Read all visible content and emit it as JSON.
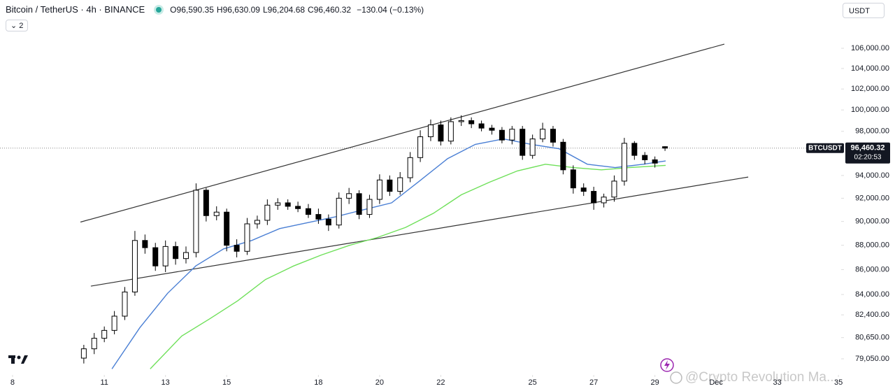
{
  "chart_data": {
    "type": "candlestick",
    "title": "Bitcoin / TetherUS · 4h · BINANCE",
    "ohlc_legend": [
      {
        "label": "O",
        "value": "96,590.35"
      },
      {
        "label": "H",
        "value": "96,630.09"
      },
      {
        "label": "L",
        "value": "96,204.68"
      },
      {
        "label": "C",
        "value": "96,460.32"
      }
    ],
    "change": "−130.04 (−0.13%)",
    "indicator_count": "2",
    "currency": "USDT",
    "symbol": "BTCUSDT",
    "countdown": "02:20:53",
    "watermark": "@Crypto Revolution Ma...",
    "log_scale": true,
    "up_color": "#ffffff",
    "down_color": "#000000",
    "wick_color": "#000000",
    "xlim": [
      7.59,
      35.02
    ],
    "ylim": [
      78165,
      108770
    ],
    "xticks": [
      8,
      11,
      13,
      15,
      18,
      20,
      22,
      25,
      27,
      29,
      {
        "value": 31,
        "label": "Dec"
      },
      33,
      35
    ],
    "yticks": [
      {
        "value": 79050,
        "label": "79,050.00"
      },
      {
        "value": 80650,
        "label": "80,650.00"
      },
      {
        "value": 82400,
        "label": "82,400.00"
      },
      {
        "value": 84000,
        "label": "84,000.00"
      },
      {
        "value": 86000,
        "label": "86,000.00"
      },
      {
        "value": 88000,
        "label": "88,000.00"
      },
      {
        "value": 90000,
        "label": "90,000.00"
      },
      {
        "value": 92000,
        "label": "92,000.00"
      },
      {
        "value": 94000,
        "label": "94,000.00"
      },
      {
        "value": 98000,
        "label": "98,000.00"
      },
      {
        "value": 100000,
        "label": "100,000.00"
      },
      {
        "value": 102000,
        "label": "102,000.00"
      },
      {
        "value": 104000,
        "label": "104,000.00"
      },
      {
        "value": 106000,
        "label": "106,000.00"
      }
    ],
    "last_price": {
      "value": 96460.32,
      "label": "96,460.32"
    },
    "x": [
      10.33,
      10.67,
      11,
      11.33,
      11.67,
      12,
      12.33,
      12.67,
      13,
      13.33,
      13.67,
      14,
      14.33,
      14.67,
      15,
      15.33,
      15.67,
      16,
      16.33,
      16.67,
      17,
      17.33,
      17.67,
      18,
      18.33,
      18.67,
      19,
      19.33,
      19.67,
      20,
      20.33,
      20.67,
      21,
      21.33,
      21.67,
      22,
      22.33,
      22.67,
      23,
      23.33,
      23.67,
      24,
      24.33,
      24.67,
      25,
      25.33,
      25.67,
      26,
      26.33,
      26.67,
      27,
      27.33,
      27.67,
      28,
      28.33,
      28.67,
      29,
      29.33
    ],
    "open": [
      79100,
      79800,
      80600,
      81200,
      82300,
      84200,
      88400,
      87800,
      86300,
      87900,
      86900,
      87400,
      92700,
      90500,
      90800,
      88000,
      87500,
      89800,
      90100,
      91400,
      91600,
      91300,
      91100,
      90600,
      90200,
      89700,
      92000,
      92400,
      90600,
      91900,
      93600,
      92600,
      93800,
      95600,
      97500,
      98600,
      97100,
      98900,
      99000,
      98700,
      98300,
      98100,
      97200,
      98200,
      95800,
      97300,
      98200,
      97000,
      94500,
      92900,
      92600,
      91600,
      92100,
      93500,
      96900,
      95800,
      95400,
      96590.35
    ],
    "high": [
      80100,
      81000,
      81500,
      82700,
      84600,
      89200,
      88900,
      88200,
      88400,
      88300,
      87900,
      93300,
      92900,
      91300,
      91100,
      88500,
      90300,
      90500,
      91900,
      92000,
      91900,
      91700,
      91500,
      91100,
      90600,
      92500,
      92900,
      92700,
      92300,
      94100,
      94000,
      94300,
      96100,
      98100,
      99100,
      99000,
      99300,
      99500,
      99300,
      99000,
      98600,
      98400,
      98500,
      98500,
      97700,
      98800,
      98500,
      97300,
      94900,
      93300,
      93000,
      92400,
      94000,
      97400,
      97100,
      96100,
      95700,
      96630.09
    ],
    "low": [
      78700,
      79400,
      80300,
      80900,
      82000,
      83900,
      87300,
      85900,
      85800,
      86400,
      86500,
      87000,
      90000,
      90100,
      87500,
      87000,
      87200,
      89400,
      89700,
      91000,
      91000,
      90800,
      90300,
      89800,
      89200,
      89400,
      91500,
      90200,
      90300,
      91500,
      92200,
      92300,
      93400,
      95200,
      97100,
      96700,
      96800,
      98500,
      98300,
      98000,
      97700,
      96900,
      96800,
      95400,
      95500,
      97000,
      96600,
      94100,
      92400,
      92200,
      91000,
      91200,
      91700,
      93100,
      95400,
      95000,
      94700,
      96204.68
    ],
    "close": [
      79800,
      80600,
      81200,
      82300,
      84200,
      88400,
      87800,
      86300,
      87900,
      86900,
      87400,
      92700,
      90500,
      90800,
      88000,
      87500,
      89800,
      90100,
      91400,
      91600,
      91300,
      91100,
      90600,
      90200,
      89700,
      92000,
      92400,
      90600,
      91900,
      93600,
      92600,
      93800,
      95600,
      97500,
      98600,
      97100,
      98900,
      99000,
      98700,
      98300,
      98100,
      97200,
      98200,
      95800,
      97300,
      98200,
      97000,
      94500,
      92900,
      92600,
      91600,
      92100,
      93500,
      96900,
      95800,
      95400,
      95100,
      96460.32
    ],
    "overlays": [
      {
        "color": "#4a7fd4",
        "x": [
          11.25,
          12.16,
          13.07,
          13.99,
          14.9,
          15.82,
          16.73,
          17.65,
          18.56,
          19.47,
          20.39,
          21.3,
          22.22,
          23.13,
          24.05,
          24.96,
          25.87,
          26.79,
          27.7,
          28.62,
          29.35
        ],
        "values": [
          78300,
          81400,
          84100,
          86300,
          87700,
          88400,
          89400,
          89900,
          90400,
          91000,
          91600,
          93500,
          95500,
          96800,
          97300,
          96800,
          96400,
          95000,
          94700,
          95000,
          95300
        ]
      },
      {
        "color": "#6fe05a",
        "x": [
          12.5,
          13.53,
          14.45,
          15.36,
          16.27,
          17.19,
          18.1,
          19.02,
          19.93,
          20.85,
          21.76,
          22.67,
          23.59,
          24.5,
          25.42,
          26.33,
          27.25,
          28.16,
          29.35
        ],
        "values": [
          78300,
          80770,
          82100,
          83500,
          85200,
          86300,
          87200,
          88000,
          88650,
          89500,
          90700,
          92300,
          93400,
          94400,
          95000,
          94700,
          94500,
          94700,
          94900
        ]
      }
    ],
    "trendlines": [
      {
        "color": "#333333",
        "x": [
          10.22,
          31.27
        ],
        "values": [
          89950,
          106420
        ]
      },
      {
        "color": "#333333",
        "x": [
          10.56,
          32.05
        ],
        "values": [
          84670,
          93860
        ]
      }
    ]
  }
}
